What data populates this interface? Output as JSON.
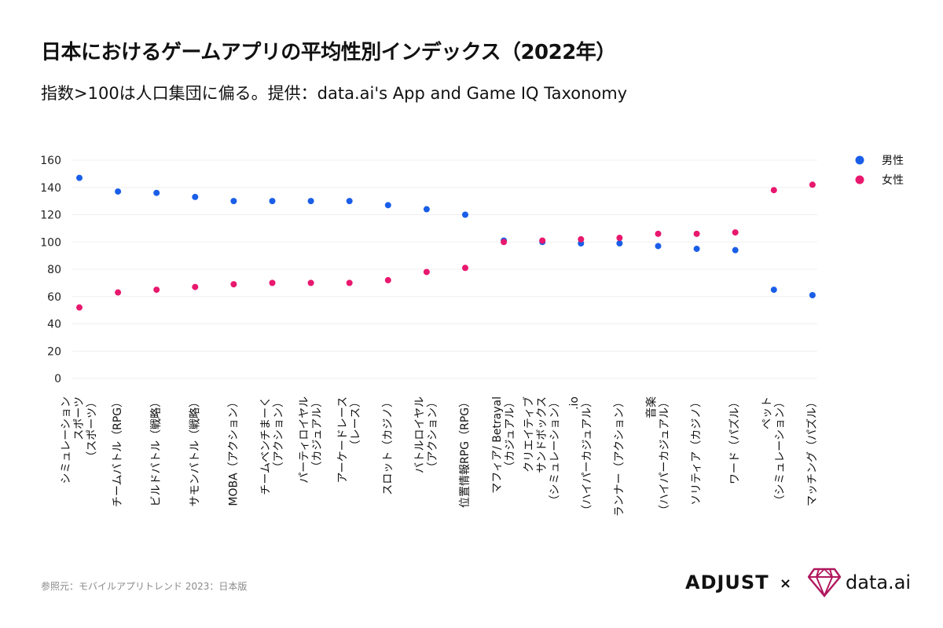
{
  "title": "日本におけるゲームアプリの平均性別インデックス（2022年）",
  "subtitle": "指数>100は人口集団に偏る。提供：data.ai's App and Game IQ Taxonomy",
  "source": "参照元：モバイルアプリトレンド 2023：日本版",
  "logos": {
    "adjust": "ADJUST",
    "separator": "×",
    "dataai": "data.ai"
  },
  "colors": {
    "male": "#1a5ee8",
    "female": "#e8186e",
    "grid": "#efefef"
  },
  "chart_data": {
    "type": "scatter",
    "ylim": [
      0,
      160
    ],
    "yticks": [
      0,
      20,
      40,
      60,
      80,
      100,
      120,
      140,
      160
    ],
    "grid": true,
    "legend_position": "top-right",
    "categories": [
      [
        "シミュレーション",
        "スポーツ",
        "（スポーツ）"
      ],
      [
        "チームバトル（RPG）"
      ],
      [
        "ビルドバトル（戦略）"
      ],
      [
        "サモンバトル（戦略）"
      ],
      [
        "MOBA（アクション）"
      ],
      [
        "チームベンチまーく",
        "（アクション）"
      ],
      [
        "パーティロイヤル",
        "（カジュアル）"
      ],
      [
        "アーケードレース",
        "（レース）"
      ],
      [
        "スロット（カジノ）"
      ],
      [
        "バトルロイヤル",
        "（アクション）"
      ],
      [
        "位置情報RPG（RPG）"
      ],
      [
        "マフィア/ Betrayal",
        "（カジュアル）"
      ],
      [
        "クリエイティブ",
        "サンドボックス",
        "（シミュレーション）"
      ],
      [
        ".io",
        "（ハイパーカジュアル）"
      ],
      [
        "ランナー（アクション）"
      ],
      [
        "音楽",
        "（ハイパーカジュアル）"
      ],
      [
        "ソリティア（カジノ）"
      ],
      [
        "ワード（パズル）"
      ],
      [
        "ペット",
        "（シミュレーション）"
      ],
      [
        "マッチング（パズル）"
      ]
    ],
    "series": [
      {
        "name": "男性",
        "color": "#1a5ee8",
        "values": [
          147,
          137,
          136,
          133,
          130,
          130,
          130,
          130,
          127,
          124,
          120,
          101,
          100,
          99,
          99,
          97,
          95,
          94,
          65,
          61
        ]
      },
      {
        "name": "女性",
        "color": "#e8186e",
        "values": [
          52,
          63,
          65,
          67,
          69,
          70,
          70,
          70,
          72,
          78,
          81,
          100,
          101,
          102,
          103,
          106,
          106,
          107,
          138,
          142
        ]
      }
    ]
  }
}
